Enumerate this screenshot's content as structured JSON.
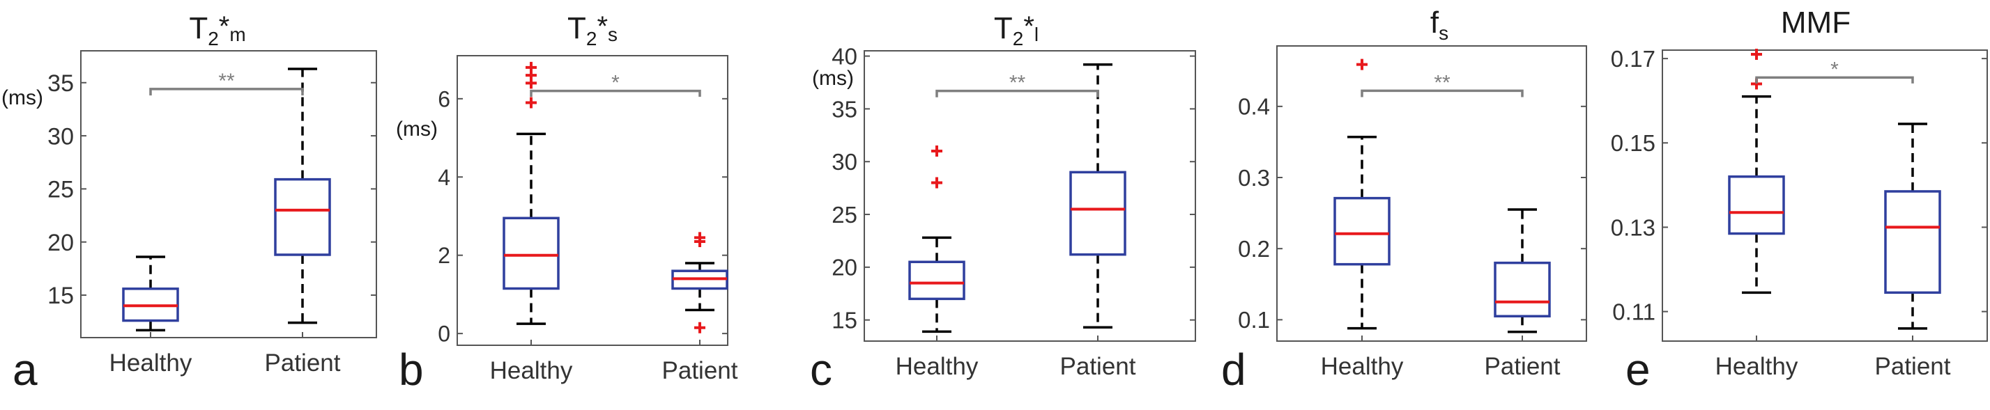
{
  "figure": {
    "colors": {
      "box": "#2f3f9e",
      "median": "#e8191c",
      "outlier": "#e8191c",
      "whisker": "#000000",
      "axis": "#555555",
      "bracket": "#7f7f7f",
      "text": "#1a1a1a"
    }
  },
  "chart_data": [
    {
      "type": "box",
      "panel_label": "a",
      "title": {
        "main": "T",
        "sub1": "2",
        "star": "*",
        "sub2": "m"
      },
      "ylabel": "(ms)",
      "ylim": [
        11,
        38
      ],
      "yticks": [
        15,
        20,
        25,
        30,
        35
      ],
      "ytick_labels": [
        "15",
        "20",
        "25",
        "30",
        "35"
      ],
      "categories": [
        "Healthy",
        "Patient"
      ],
      "boxes": [
        {
          "name": "Healthy",
          "whisker_low": 11.7,
          "q1": 12.6,
          "median": 14.0,
          "q3": 15.6,
          "whisker_high": 18.6,
          "outliers": []
        },
        {
          "name": "Patient",
          "whisker_low": 12.4,
          "q1": 18.8,
          "median": 23.0,
          "q3": 25.9,
          "whisker_high": 36.3,
          "outliers": []
        }
      ],
      "significance": {
        "label": "**",
        "level": 34.4,
        "tick": 0.6
      }
    },
    {
      "type": "box",
      "panel_label": "b",
      "title": {
        "main": "T",
        "sub1": "2",
        "star": "*",
        "sub2": "s"
      },
      "ylabel": "(ms)",
      "ylim": [
        -0.3,
        7.1
      ],
      "yticks": [
        0,
        2,
        4,
        6
      ],
      "ytick_labels": [
        "0",
        "2",
        "4",
        "6"
      ],
      "categories": [
        "Healthy",
        "Patient"
      ],
      "boxes": [
        {
          "name": "Healthy",
          "whisker_low": 0.25,
          "q1": 1.15,
          "median": 2.0,
          "q3": 2.95,
          "whisker_high": 5.1,
          "outliers": [
            5.9,
            6.4,
            6.6,
            6.8
          ]
        },
        {
          "name": "Patient",
          "whisker_low": 0.6,
          "q1": 1.15,
          "median": 1.4,
          "q3": 1.6,
          "whisker_high": 1.8,
          "outliers": [
            2.35,
            2.45,
            0.15
          ]
        }
      ],
      "significance": {
        "label": "*",
        "level": 6.2,
        "tick": 0.15
      }
    },
    {
      "type": "box",
      "panel_label": "c",
      "title": {
        "main": "T",
        "sub1": "2",
        "star": "*",
        "sub2": "l"
      },
      "ylabel": "(ms)",
      "ylim": [
        13,
        40.5
      ],
      "yticks": [
        15,
        20,
        25,
        30,
        35,
        40
      ],
      "ytick_labels": [
        "15",
        "20",
        "25",
        "30",
        "35",
        "40"
      ],
      "categories": [
        "Healthy",
        "Patient"
      ],
      "boxes": [
        {
          "name": "Healthy",
          "whisker_low": 13.9,
          "q1": 17.0,
          "median": 18.5,
          "q3": 20.5,
          "whisker_high": 22.8,
          "outliers": [
            31.0,
            28.0
          ]
        },
        {
          "name": "Patient",
          "whisker_low": 14.3,
          "q1": 21.2,
          "median": 25.5,
          "q3": 29.0,
          "whisker_high": 39.2,
          "outliers": []
        }
      ],
      "significance": {
        "label": "**",
        "level": 36.7,
        "tick": 0.6
      }
    },
    {
      "type": "box",
      "panel_label": "d",
      "title": {
        "main": "f",
        "sub1": "s",
        "star": "",
        "sub2": ""
      },
      "ylabel": "",
      "ylim": [
        0.07,
        0.485
      ],
      "yticks": [
        0.1,
        0.2,
        0.3,
        0.4
      ],
      "ytick_labels": [
        "0.1",
        "0.2",
        "0.3",
        "0.4"
      ],
      "categories": [
        "Healthy",
        "Patient"
      ],
      "boxes": [
        {
          "name": "Healthy",
          "whisker_low": 0.088,
          "q1": 0.178,
          "median": 0.221,
          "q3": 0.271,
          "whisker_high": 0.357,
          "outliers": [
            0.459
          ]
        },
        {
          "name": "Patient",
          "whisker_low": 0.083,
          "q1": 0.105,
          "median": 0.125,
          "q3": 0.18,
          "whisker_high": 0.255,
          "outliers": []
        }
      ],
      "significance": {
        "label": "**",
        "level": 0.422,
        "tick": 0.009
      }
    },
    {
      "type": "box",
      "panel_label": "e",
      "title": {
        "main": "MMF",
        "sub1": "",
        "star": "",
        "sub2": ""
      },
      "ylabel": "",
      "ylim": [
        0.103,
        0.172
      ],
      "yticks": [
        0.11,
        0.13,
        0.15,
        0.17
      ],
      "ytick_labels": [
        "0.11",
        "0.13",
        "0.15",
        "0.17"
      ],
      "categories": [
        "Healthy",
        "Patient"
      ],
      "boxes": [
        {
          "name": "Healthy",
          "whisker_low": 0.1145,
          "q1": 0.1285,
          "median": 0.1335,
          "q3": 0.142,
          "whisker_high": 0.161,
          "outliers": [
            0.171,
            0.164
          ]
        },
        {
          "name": "Patient",
          "whisker_low": 0.106,
          "q1": 0.1145,
          "median": 0.13,
          "q3": 0.1385,
          "whisker_high": 0.1545,
          "outliers": []
        }
      ],
      "significance": {
        "label": "*",
        "level": 0.1655,
        "tick": 0.0014
      }
    }
  ]
}
